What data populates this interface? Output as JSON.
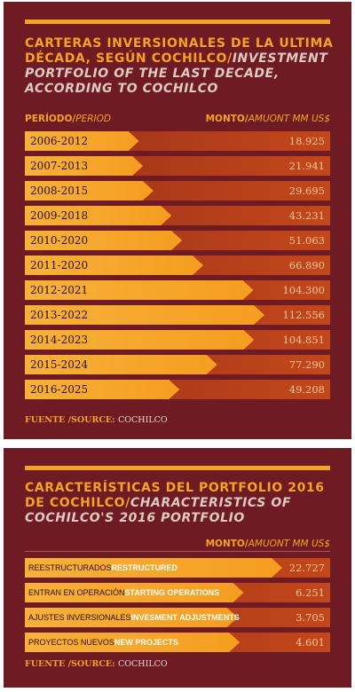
{
  "panel1": {
    "title_es": "CARTERAS INVERSIONALES DE LA ULTIMA DÉCADA, SEGÚN COCHILCO/",
    "title_en": "INVESTMENT PORTFOLIO OF THE LAST DECADE, ACCORDING TO COCHILCO",
    "col_left_es": "PERÍODO/",
    "col_left_en": "PERIOD",
    "col_right_es": "MONTO/",
    "col_right_en": "AMUONT MM US$",
    "source_label": "FUENTE /SOURCE:",
    "source_name": "COCHILCO"
  },
  "panel2": {
    "title_es": "CARACTERÍSTICAS DEL PORTFOLIO 2016 DE COCHILCO/",
    "title_en": "CHARACTERISTICS OF COCHILCO'S 2016 PORTFOLIO",
    "col_right_es": "MONTO/",
    "col_right_en": "AMUONT MM US$",
    "source_label": "FUENTE /SOURCE:",
    "source_name": "COCHILCO"
  },
  "chart_data": [
    {
      "type": "bar",
      "categories": [
        "2006-2012",
        "2007-2013",
        "2008-2015",
        "2009-2018",
        "2010-2020",
        "2011-2020",
        "2012-2021",
        "2013-2022",
        "2014-2023",
        "2015-2024",
        "2016-2025"
      ],
      "values": [
        18.925,
        21.941,
        29.695,
        43.231,
        51.063,
        66.89,
        104.3,
        112.556,
        104.851,
        77.29,
        49.208
      ],
      "value_labels": [
        "18.925",
        "21.941",
        "29.695",
        "43.231",
        "51.063",
        "66.890",
        "104.300",
        "112.556",
        "104.851",
        "77.290",
        "49.208"
      ],
      "orientation": "horizontal"
    },
    {
      "type": "bar",
      "categories_es": [
        "REESTRUCTURADOS",
        "ENTRAN EN OPERACIÓN",
        "AJUSTES INVERSIONALES",
        "PROYECTOS NUEVOS"
      ],
      "categories_en": [
        "RESTRUCTURED",
        "STARTING OPERATIONS",
        "INVESMENT ADJUSTMENTS",
        "NEW PROJECTS"
      ],
      "values": [
        22.727,
        6.251,
        3.705,
        4.601
      ],
      "value_labels": [
        "22.727",
        "6.251",
        "3.705",
        "4.601"
      ],
      "orientation": "horizontal"
    }
  ],
  "colors": {
    "panel": "#6e1b24",
    "accent": "#f5a327"
  }
}
